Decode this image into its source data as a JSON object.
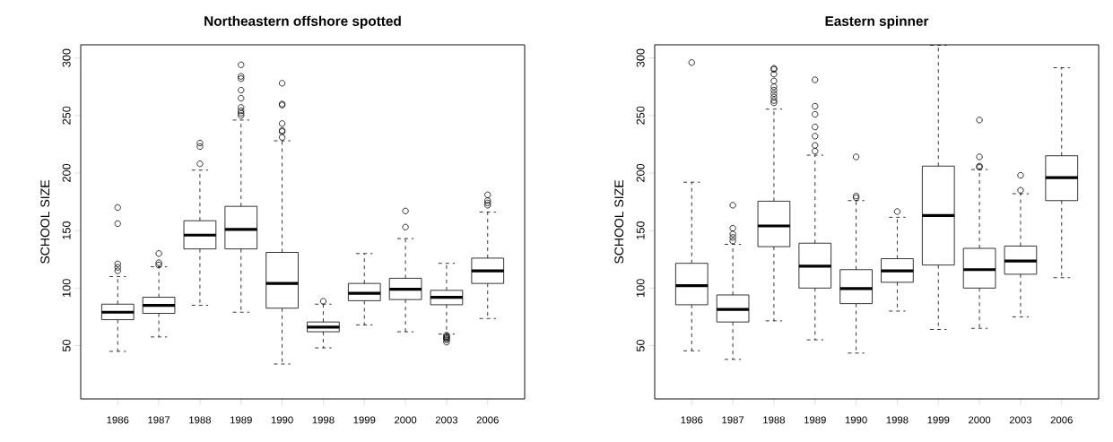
{
  "chart_data": [
    {
      "type": "box",
      "title": "Northeastern offshore spotted",
      "ylabel": "SCHOOL SIZE",
      "categories": [
        "1986",
        "1987",
        "1988",
        "1989",
        "1990",
        "1998",
        "1999",
        "2000",
        "2003",
        "2006"
      ],
      "boxes": [
        {
          "low": 45,
          "q1": 72.5,
          "median": 79,
          "q3": 86,
          "high": 110,
          "outliers": [
            115,
            118,
            121,
            156,
            170
          ]
        },
        {
          "low": 57.5,
          "q1": 78,
          "median": 85,
          "q3": 92,
          "high": 118.5,
          "outliers": [
            120,
            122,
            130
          ]
        },
        {
          "low": 85,
          "q1": 134,
          "median": 146,
          "q3": 158.5,
          "high": 202.5,
          "outliers": [
            208,
            223,
            226
          ]
        },
        {
          "low": 79,
          "q1": 134,
          "median": 151,
          "q3": 171,
          "high": 246,
          "outliers": [
            250,
            252,
            254,
            257,
            265,
            272,
            282,
            284,
            294
          ]
        },
        {
          "low": 34,
          "q1": 82.5,
          "median": 104,
          "q3": 131,
          "high": 228,
          "outliers": [
            231,
            236,
            237,
            243,
            259,
            260,
            278
          ]
        },
        {
          "low": 48,
          "q1": 62,
          "median": 66,
          "q3": 70.5,
          "high": 86,
          "outliers": [
            88.5
          ]
        },
        {
          "low": 68,
          "q1": 89,
          "median": 95.5,
          "q3": 104,
          "high": 130
        },
        {
          "low": 62,
          "q1": 90,
          "median": 99,
          "q3": 108.5,
          "high": 143,
          "outliers": [
            153,
            167
          ]
        },
        {
          "low": 60,
          "q1": 85.5,
          "median": 92,
          "q3": 98,
          "high": 121.5,
          "outliers": [
            53,
            55,
            56,
            57,
            58,
            59
          ]
        },
        {
          "low": 73.5,
          "q1": 104,
          "median": 115,
          "q3": 126,
          "high": 166,
          "outliers": [
            172,
            174,
            176,
            181
          ]
        }
      ],
      "ylim": [
        3.6,
        311.4
      ],
      "yticks": [
        50,
        100,
        150,
        200,
        250,
        300
      ],
      "grid": false,
      "marker": "circle"
    },
    {
      "type": "box",
      "title": "Eastern spinner",
      "ylabel": "SCHOOL SIZE",
      "categories": [
        "1986",
        "1987",
        "1988",
        "1989",
        "1990",
        "1998",
        "1999",
        "2000",
        "2003",
        "2006"
      ],
      "boxes": [
        {
          "low": 45.5,
          "q1": 85.5,
          "median": 102,
          "q3": 121.5,
          "high": 192,
          "outliers": [
            296
          ]
        },
        {
          "low": 38,
          "q1": 70.5,
          "median": 81.5,
          "q3": 94,
          "high": 138,
          "outliers": [
            141,
            144,
            147,
            152,
            172
          ]
        },
        {
          "low": 71.5,
          "q1": 136,
          "median": 154,
          "q3": 175.5,
          "high": 255.5,
          "outliers": [
            261,
            263,
            266,
            269,
            272,
            275,
            280,
            286,
            290,
            291
          ]
        },
        {
          "low": 55,
          "q1": 100,
          "median": 119,
          "q3": 139,
          "high": 215.5,
          "outliers": [
            219,
            224,
            232,
            240,
            251,
            258,
            281
          ]
        },
        {
          "low": 43.5,
          "q1": 86.5,
          "median": 99.5,
          "q3": 116,
          "high": 176,
          "outliers": [
            178.5,
            180,
            214
          ]
        },
        {
          "low": 80,
          "q1": 105,
          "median": 115,
          "q3": 125.5,
          "high": 161.5,
          "outliers": [
            166.5
          ]
        },
        {
          "low": 64,
          "q1": 120,
          "median": 163,
          "q3": 206,
          "high": 311
        },
        {
          "low": 65,
          "q1": 100,
          "median": 116,
          "q3": 134.5,
          "high": 203,
          "outliers": [
            205,
            206,
            214,
            246
          ]
        },
        {
          "low": 75,
          "q1": 112,
          "median": 123.5,
          "q3": 136.5,
          "high": 182,
          "outliers": [
            185,
            198
          ]
        },
        {
          "low": 109,
          "q1": 176,
          "median": 196,
          "q3": 215,
          "high": 291.5
        }
      ],
      "ylim": [
        3.6,
        311.4
      ],
      "yticks": [
        50,
        100,
        150,
        200,
        250,
        300
      ],
      "grid": false,
      "marker": "circle"
    }
  ]
}
